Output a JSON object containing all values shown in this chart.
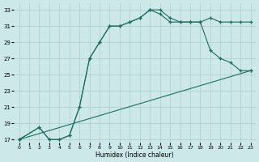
{
  "xlabel": "Humidex (Indice chaleur)",
  "bg_color": "#cce8e8",
  "grid_color": "#aacece",
  "line_color": "#1a6e62",
  "xlim_min": -0.5,
  "xlim_max": 23.5,
  "ylim_min": 16.6,
  "ylim_max": 33.8,
  "xticks": [
    0,
    1,
    2,
    3,
    4,
    5,
    6,
    7,
    8,
    9,
    10,
    11,
    12,
    13,
    14,
    15,
    16,
    17,
    18,
    19,
    20,
    21,
    22,
    23
  ],
  "yticks": [
    17,
    19,
    21,
    23,
    25,
    27,
    29,
    31,
    33
  ],
  "line1_x": [
    0,
    2,
    3,
    4,
    5,
    6,
    7,
    8,
    9,
    10,
    11,
    12,
    13,
    14,
    15,
    16,
    17,
    18,
    19,
    20,
    21,
    22,
    23
  ],
  "line1_y": [
    17,
    18.5,
    17,
    17,
    17.5,
    21,
    27,
    29,
    31,
    31,
    31.5,
    32,
    33,
    32.5,
    31.5,
    31.5,
    31.5,
    31.5,
    32,
    31.5,
    31.5,
    31.5,
    31.5
  ],
  "line2_x": [
    0,
    2,
    3,
    4,
    5,
    6,
    7,
    8,
    9,
    10,
    11,
    12,
    13,
    14,
    15,
    16,
    17,
    18,
    19,
    20,
    21,
    22,
    23
  ],
  "line2_y": [
    17,
    18.5,
    17,
    17,
    17.5,
    21,
    27,
    29,
    31,
    31,
    31.5,
    32,
    33,
    33,
    32,
    31.5,
    31.5,
    31.5,
    28,
    27,
    26.5,
    25.5,
    25.5
  ],
  "line3_x": [
    0,
    23
  ],
  "line3_y": [
    17,
    25.5
  ]
}
